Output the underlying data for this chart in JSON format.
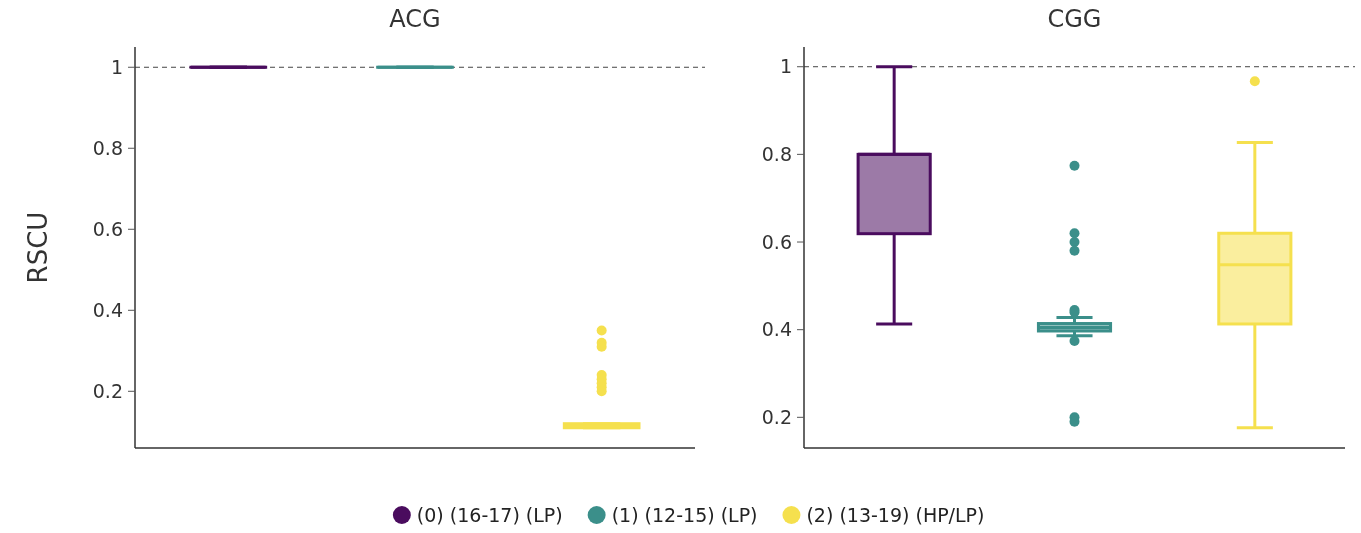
{
  "chart_data": [
    {
      "type": "box",
      "title": "ACG",
      "ylabel": "RSCU",
      "categories": [
        null,
        null,
        null
      ],
      "ylim": [
        0.06,
        1.05
      ],
      "yticks": [
        0.2,
        0.4,
        0.6,
        0.8,
        1
      ],
      "tick_labels": "y",
      "legend": "bottom",
      "ref_lines": [
        {
          "axis": "y",
          "value": 1,
          "line_style": "dashed",
          "color": "#444444"
        }
      ],
      "series": [
        {
          "name": "(0) (16-17) (LP)",
          "color": "#4a0c5e",
          "boxes": [
            {
              "low": 1,
              "q1": 1,
              "median": 1,
              "q3": 1,
              "high": 1
            },
            null,
            null
          ]
        },
        {
          "name": "(1) (12-15) (LP)",
          "color": "#3b8f8a",
          "boxes": [
            null,
            {
              "low": 1,
              "q1": 1,
              "median": 1,
              "q3": 1,
              "high": 1
            },
            null
          ]
        },
        {
          "name": "(2) (13-19) (HP/LP)",
          "color": "#f5e04e",
          "boxes": [
            null,
            null,
            {
              "low": 0.11,
              "q1": 0.11,
              "median": 0.115,
              "q3": 0.12,
              "high": 0.12,
              "outliers": [
                0.35,
                0.32,
                0.31,
                0.24,
                0.23,
                0.22,
                0.21,
                0.2
              ]
            }
          ]
        }
      ]
    },
    {
      "type": "box",
      "title": "CGG",
      "categories": [
        null,
        null,
        null
      ],
      "ylim": [
        0.13,
        1.045
      ],
      "yticks": [
        0.2,
        0.4,
        0.6,
        0.8,
        1
      ],
      "tick_labels": "y",
      "ref_lines": [
        {
          "axis": "y",
          "value": 1,
          "line_style": "dashed",
          "color": "#444444"
        }
      ],
      "series": [
        {
          "color": "#4a0c5e",
          "boxes": [
            {
              "low": 0.413,
              "q1": 0.619,
              "median": 0.8,
              "q3": 0.8,
              "high": 1
            },
            null,
            null
          ]
        },
        {
          "color": "#3b8f8a",
          "boxes": [
            null,
            {
              "low": 0.386,
              "q1": 0.397,
              "median": 0.405,
              "q3": 0.414,
              "high": 0.428,
              "outliers": [
                0.774,
                0.62,
                0.6,
                0.58,
                0.445,
                0.44,
                0.374,
                0.2,
                0.19
              ]
            },
            null
          ]
        },
        {
          "color": "#f5e04e",
          "boxes": [
            null,
            null,
            {
              "low": 0.176,
              "q1": 0.413,
              "median": 0.548,
              "q3": 0.62,
              "high": 0.827,
              "outliers": [
                0.967
              ]
            }
          ]
        }
      ]
    }
  ]
}
